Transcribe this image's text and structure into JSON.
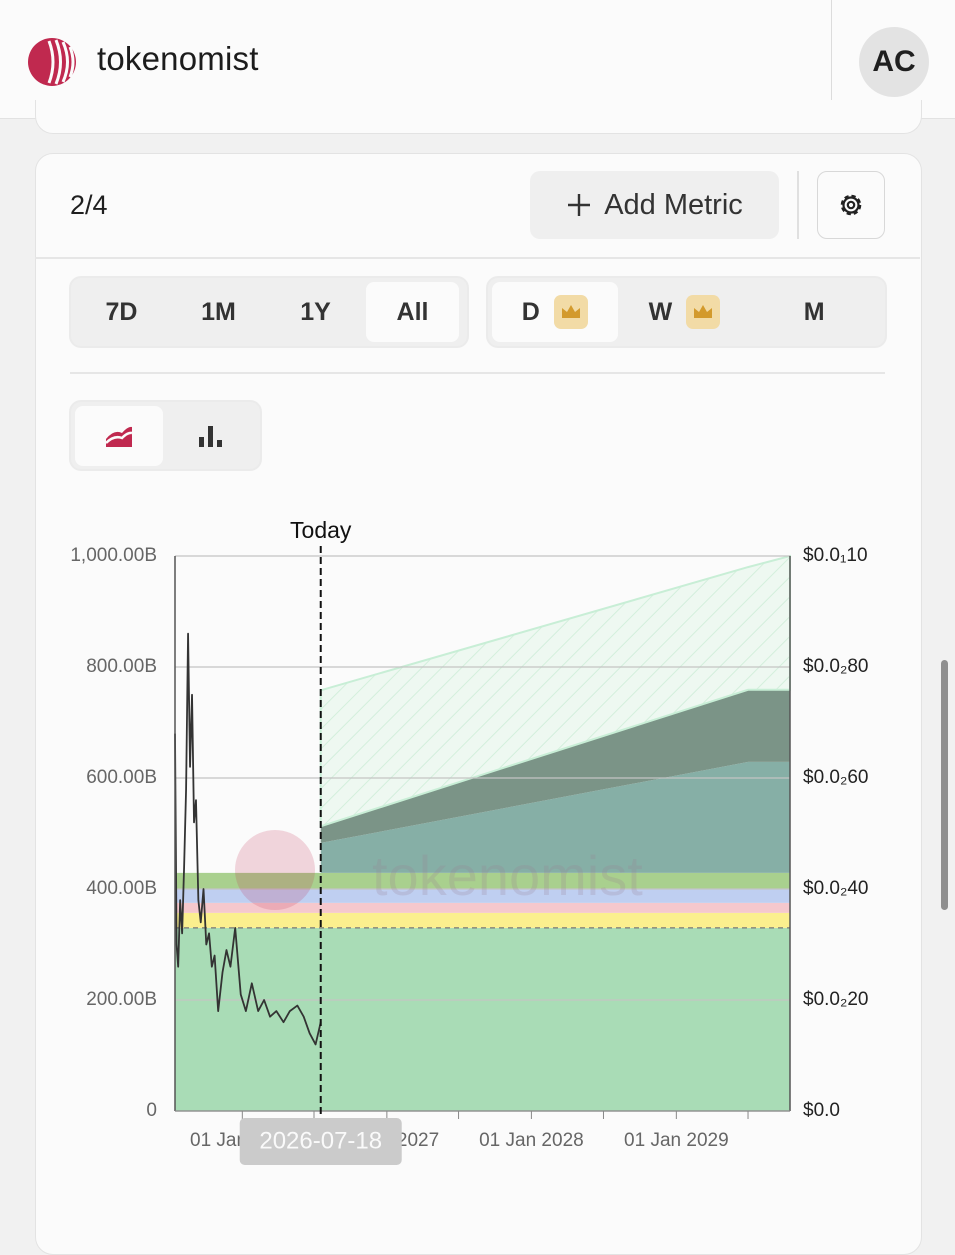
{
  "header": {
    "brand": "tokenomist",
    "avatar": "AC"
  },
  "panel": {
    "count": "2/4",
    "add_metric": "Add Metric",
    "ranges": [
      "7D",
      "1M",
      "1Y",
      "All"
    ],
    "active_range": 3,
    "intervals": [
      "D",
      "W",
      "M"
    ],
    "active_interval": 0
  },
  "chart": {
    "type": "area",
    "watermark": "tokenomist",
    "today": {
      "label": "Today",
      "date": "2026-07-18"
    },
    "xlim": [
      "2025-07-15",
      "2029-10-15"
    ],
    "xticks": [
      {
        "value": "2026-01-01",
        "label": "01 Jan 2026"
      },
      {
        "value": "2027-01-01",
        "label": "01 Jan 2027"
      },
      {
        "value": "2028-01-01",
        "label": "01 Jan 2028"
      },
      {
        "value": "2029-01-01",
        "label": "01 Jan 2029"
      }
    ],
    "xminor_ticks": [
      "2026-07-01",
      "2027-07-01",
      "2028-07-01",
      "2029-07-01"
    ],
    "ylim": [
      0,
      1000
    ],
    "yticks": [
      0,
      {
        "value": 200,
        "label": "200.00B"
      },
      {
        "value": 400,
        "label": "400.00B"
      },
      {
        "value": 600,
        "label": "600.00B"
      },
      {
        "value": 800,
        "label": "800.00B"
      },
      {
        "value": 1000,
        "label": "1,000.00B"
      }
    ],
    "y2lim": [
      0,
      0.01
    ],
    "y2ticks": [
      {
        "value": 0,
        "label": "$0.0"
      },
      {
        "value": 0.002,
        "label": "$0.0₂20"
      },
      {
        "value": 0.004,
        "label": "$0.0₂40"
      },
      {
        "value": 0.006,
        "label": "$0.0₂60"
      },
      {
        "value": 0.008,
        "label": "$0.0₂80"
      },
      {
        "value": 0.01,
        "label": "$0.0₁10"
      }
    ],
    "grid": true,
    "areas": {
      "x": [
        "2025-07-15",
        "2026-07-18",
        "2029-07-01",
        "2029-10-15"
      ],
      "series": [
        {
          "color": "#a9dcb6",
          "values": [
            330,
            330,
            330,
            330
          ]
        },
        {
          "color": "#fbef8e",
          "values": [
            27,
            27,
            27,
            27
          ]
        },
        {
          "color": "#f5c8cd",
          "values": [
            18,
            18,
            18,
            18
          ]
        },
        {
          "color": "#bfcff1",
          "values": [
            24,
            24,
            24,
            24
          ]
        },
        {
          "color": "#a9d08e",
          "values": [
            30,
            30,
            30,
            30
          ]
        },
        {
          "color": "#86afa6",
          "values": [
            null,
            54,
            200,
            200
          ]
        },
        {
          "color": "#7b9487",
          "values": [
            null,
            30,
            130,
            130
          ]
        },
        {
          "color": "#c8eed6",
          "hatch": true,
          "values": [
            null,
            245,
            221,
            241
          ]
        }
      ]
    },
    "price": {
      "axis": "y2",
      "color": "#333333",
      "x": [
        "2025-07-15",
        "2025-07-19",
        "2025-07-23",
        "2025-07-28",
        "2025-08-02",
        "2025-08-07",
        "2025-08-12",
        "2025-08-17",
        "2025-08-22",
        "2025-08-27",
        "2025-09-01",
        "2025-09-06",
        "2025-09-12",
        "2025-09-18",
        "2025-09-25",
        "2025-10-02",
        "2025-10-09",
        "2025-10-16",
        "2025-10-23",
        "2025-11-01",
        "2025-11-12",
        "2025-11-22",
        "2025-12-02",
        "2025-12-14",
        "2025-12-28",
        "2026-01-10",
        "2026-01-25",
        "2026-02-10",
        "2026-02-25",
        "2026-03-12",
        "2026-03-28",
        "2026-04-15",
        "2026-05-01",
        "2026-05-20",
        "2026-06-05",
        "2026-06-20",
        "2026-07-05",
        "2026-07-18"
      ],
      "values": [
        0.0068,
        0.003,
        0.0026,
        0.0038,
        0.0032,
        0.0044,
        0.0058,
        0.0086,
        0.0062,
        0.0075,
        0.0052,
        0.0056,
        0.0038,
        0.0034,
        0.004,
        0.003,
        0.0032,
        0.0026,
        0.0028,
        0.0018,
        0.0025,
        0.0029,
        0.0026,
        0.0033,
        0.0021,
        0.0018,
        0.0023,
        0.0018,
        0.002,
        0.0017,
        0.0018,
        0.0016,
        0.0018,
        0.0019,
        0.0017,
        0.0014,
        0.0012,
        0.0016
      ]
    }
  }
}
